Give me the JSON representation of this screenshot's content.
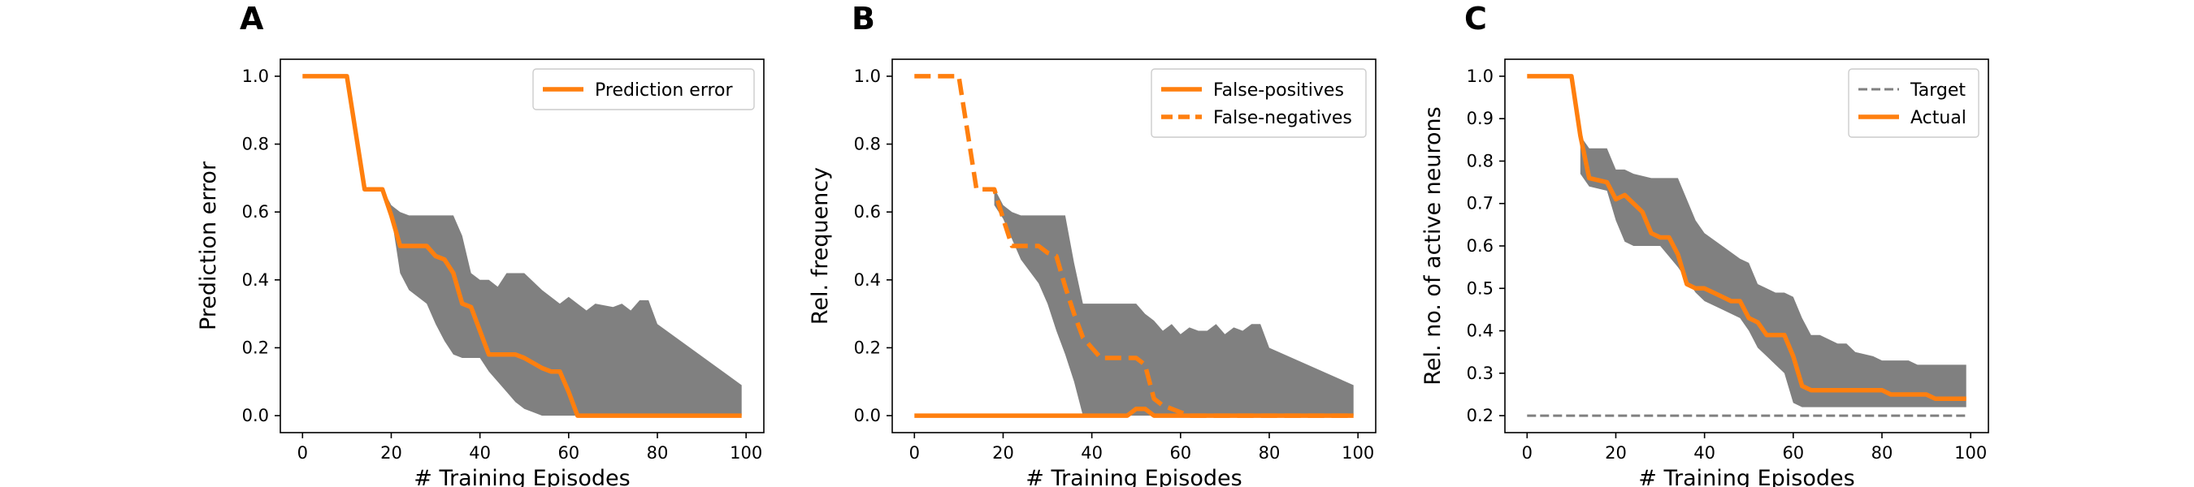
{
  "colors": {
    "line": "#ff7f0e",
    "band": "#808080",
    "target": "#808080",
    "axis": "#000000"
  },
  "chart_data": [
    {
      "type": "line",
      "panel_label": "A",
      "xlabel": "# Training Episodes",
      "ylabel": "Prediction error",
      "xlim": [
        -5,
        104
      ],
      "ylim": [
        -0.05,
        1.05
      ],
      "xticks": [
        0,
        20,
        40,
        60,
        80,
        100
      ],
      "yticks": [
        0.0,
        0.2,
        0.4,
        0.6,
        0.8,
        1.0
      ],
      "ytick_labels": [
        "0.0",
        "0.2",
        "0.4",
        "0.6",
        "0.8",
        "1.0"
      ],
      "legend_position": "top-right",
      "series": [
        {
          "name": "Prediction error",
          "style": "solid",
          "x": [
            0,
            10,
            14,
            18,
            20,
            22,
            28,
            30,
            32,
            34,
            36,
            38,
            40,
            42,
            44,
            48,
            50,
            54,
            56,
            58,
            60,
            62,
            99
          ],
          "y": [
            1.0,
            1.0,
            0.667,
            0.667,
            0.59,
            0.5,
            0.5,
            0.47,
            0.46,
            0.42,
            0.33,
            0.32,
            0.25,
            0.18,
            0.18,
            0.18,
            0.17,
            0.14,
            0.13,
            0.13,
            0.07,
            0.0,
            0.0
          ]
        }
      ],
      "bands": [
        {
          "x": [
            18,
            20,
            22,
            24,
            28,
            30,
            32,
            34,
            36,
            38,
            40,
            42,
            44,
            46,
            48,
            50,
            54,
            56,
            58,
            60,
            62,
            64,
            66,
            70,
            72,
            74,
            76,
            78,
            80,
            99
          ],
          "upper": [
            0.67,
            0.62,
            0.6,
            0.59,
            0.59,
            0.59,
            0.59,
            0.59,
            0.53,
            0.42,
            0.4,
            0.4,
            0.38,
            0.42,
            0.42,
            0.42,
            0.37,
            0.35,
            0.33,
            0.35,
            0.33,
            0.31,
            0.33,
            0.32,
            0.33,
            0.31,
            0.34,
            0.34,
            0.27,
            0.09
          ],
          "lower": [
            0.67,
            0.59,
            0.42,
            0.37,
            0.33,
            0.27,
            0.22,
            0.18,
            0.17,
            0.17,
            0.17,
            0.13,
            0.1,
            0.07,
            0.04,
            0.02,
            0.0,
            0.0,
            0.0,
            0.0,
            0.0,
            0.0,
            0.0,
            0.0,
            0.0,
            0.0,
            0.0,
            0.0,
            0.0,
            0.0
          ]
        }
      ]
    },
    {
      "type": "line",
      "panel_label": "B",
      "xlabel": "# Training Episodes",
      "ylabel": "Rel. frequency",
      "xlim": [
        -5,
        104
      ],
      "ylim": [
        -0.05,
        1.05
      ],
      "xticks": [
        0,
        20,
        40,
        60,
        80,
        100
      ],
      "yticks": [
        0.0,
        0.2,
        0.4,
        0.6,
        0.8,
        1.0
      ],
      "ytick_labels": [
        "0.0",
        "0.2",
        "0.4",
        "0.6",
        "0.8",
        "1.0"
      ],
      "legend_position": "top-right",
      "series": [
        {
          "name": "False-positives",
          "style": "solid",
          "x": [
            0,
            48,
            50,
            52,
            54,
            99
          ],
          "y": [
            0.0,
            0.0,
            0.02,
            0.02,
            0.0,
            0.0
          ]
        },
        {
          "name": "False-negatives",
          "style": "dashed",
          "x": [
            0,
            10,
            13,
            14,
            18,
            20,
            22,
            28,
            30,
            32,
            34,
            36,
            38,
            40,
            42,
            50,
            52,
            54,
            56,
            58,
            60,
            62,
            99
          ],
          "y": [
            1.0,
            1.0,
            0.75,
            0.667,
            0.667,
            0.58,
            0.5,
            0.5,
            0.48,
            0.47,
            0.38,
            0.3,
            0.23,
            0.2,
            0.17,
            0.17,
            0.15,
            0.05,
            0.03,
            0.02,
            0.01,
            0.0,
            0.0
          ]
        }
      ],
      "bands": [
        {
          "x": [
            18,
            20,
            22,
            24,
            28,
            30,
            32,
            34,
            36,
            38,
            40,
            42,
            44,
            46,
            48,
            50,
            52,
            54,
            56,
            58,
            60,
            62,
            64,
            66,
            68,
            70,
            72,
            74,
            76,
            78,
            80,
            99
          ],
          "upper": [
            0.67,
            0.62,
            0.6,
            0.59,
            0.59,
            0.59,
            0.59,
            0.59,
            0.45,
            0.33,
            0.33,
            0.33,
            0.33,
            0.33,
            0.33,
            0.33,
            0.3,
            0.28,
            0.25,
            0.27,
            0.24,
            0.26,
            0.25,
            0.25,
            0.27,
            0.24,
            0.26,
            0.25,
            0.27,
            0.27,
            0.2,
            0.09
          ],
          "lower": [
            0.62,
            0.58,
            0.52,
            0.46,
            0.39,
            0.33,
            0.25,
            0.18,
            0.1,
            0.0,
            0.0,
            0.0,
            0.0,
            0.0,
            0.0,
            0.0,
            0.0,
            0.0,
            0.0,
            0.0,
            0.0,
            0.0,
            0.0,
            0.0,
            0.0,
            0.0,
            0.0,
            0.0,
            0.0,
            0.0,
            0.0,
            0.0
          ]
        }
      ]
    },
    {
      "type": "line",
      "panel_label": "C",
      "xlabel": "# Training Episodes",
      "ylabel": "Rel. no. of active neurons",
      "xlim": [
        -5,
        104
      ],
      "ylim": [
        0.16,
        1.04
      ],
      "xticks": [
        0,
        20,
        40,
        60,
        80,
        100
      ],
      "yticks": [
        0.2,
        0.3,
        0.4,
        0.5,
        0.6,
        0.7,
        0.8,
        0.9,
        1.0
      ],
      "ytick_labels": [
        "0.2",
        "0.3",
        "0.4",
        "0.5",
        "0.6",
        "0.7",
        "0.8",
        "0.9",
        "1.0"
      ],
      "legend_position": "top-right",
      "series": [
        {
          "name": "Target",
          "style": "dashed-thin",
          "x": [
            0,
            99
          ],
          "y": [
            0.2,
            0.2
          ]
        },
        {
          "name": "Actual",
          "style": "solid",
          "x": [
            0,
            10,
            12,
            14,
            18,
            20,
            22,
            24,
            26,
            28,
            30,
            32,
            34,
            36,
            38,
            40,
            42,
            44,
            46,
            48,
            50,
            52,
            54,
            56,
            58,
            60,
            62,
            64,
            66,
            80,
            82,
            90,
            92,
            99
          ],
          "y": [
            1.0,
            1.0,
            0.86,
            0.76,
            0.75,
            0.71,
            0.72,
            0.7,
            0.68,
            0.63,
            0.62,
            0.62,
            0.58,
            0.51,
            0.5,
            0.5,
            0.49,
            0.48,
            0.47,
            0.47,
            0.43,
            0.42,
            0.39,
            0.39,
            0.39,
            0.34,
            0.27,
            0.26,
            0.26,
            0.26,
            0.25,
            0.25,
            0.24,
            0.24
          ]
        }
      ],
      "bands": [
        {
          "x": [
            12,
            14,
            18,
            20,
            22,
            24,
            28,
            30,
            34,
            38,
            40,
            44,
            48,
            50,
            52,
            54,
            56,
            58,
            60,
            62,
            64,
            66,
            70,
            72,
            74,
            78,
            80,
            86,
            88,
            92,
            94,
            99
          ],
          "upper": [
            0.86,
            0.83,
            0.83,
            0.78,
            0.78,
            0.77,
            0.76,
            0.76,
            0.76,
            0.66,
            0.63,
            0.6,
            0.57,
            0.56,
            0.51,
            0.5,
            0.49,
            0.49,
            0.48,
            0.43,
            0.39,
            0.39,
            0.37,
            0.37,
            0.35,
            0.34,
            0.33,
            0.33,
            0.32,
            0.32,
            0.32,
            0.32
          ],
          "lower": [
            0.77,
            0.74,
            0.73,
            0.66,
            0.61,
            0.6,
            0.6,
            0.6,
            0.55,
            0.49,
            0.47,
            0.45,
            0.43,
            0.4,
            0.36,
            0.34,
            0.32,
            0.3,
            0.23,
            0.22,
            0.22,
            0.22,
            0.22,
            0.22,
            0.22,
            0.22,
            0.22,
            0.22,
            0.22,
            0.22,
            0.22,
            0.22
          ]
        }
      ]
    }
  ]
}
